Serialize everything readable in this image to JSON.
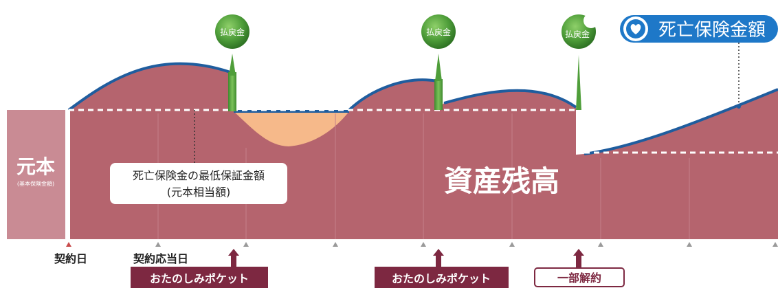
{
  "principal": {
    "label": "元本",
    "sublabel": "(基本保険金額)"
  },
  "asset_balance_label": "資産残高",
  "min_guarantee_callout": {
    "line1": "死亡保険金の最低保証金額",
    "line2": "(元本相当額)"
  },
  "death_benefit_label": "死亡保険金額",
  "payout_badges": [
    "払戻金",
    "払戻金",
    "払戻金"
  ],
  "timeline": {
    "contract_date": "契約日",
    "anniversary": "契約応当日"
  },
  "bottom_tags": {
    "pocket_1": "おたのしみポケット",
    "pocket_2": "おたのしみポケット",
    "partial_cancel": "一部解約"
  },
  "colors": {
    "asset_fill": "#b5646e",
    "principal_box": "#c98b94",
    "curve_line": "#1f5d9e",
    "shortfall_fill": "#f6b98a",
    "payout_green": "#4f9e3a",
    "badge_blue": "#1e78c8",
    "tag_maroon": "#7d2841"
  },
  "icons": {
    "death_benefit": "heart-shield-icon"
  }
}
